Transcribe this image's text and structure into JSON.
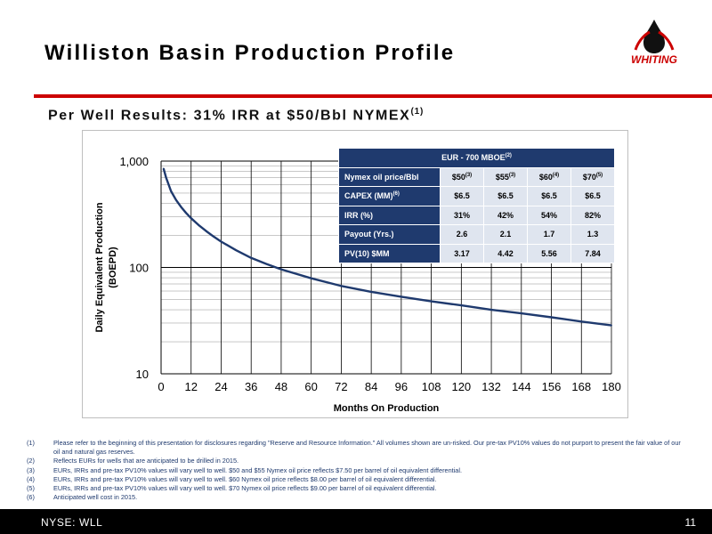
{
  "slide": {
    "title": "Williston Basin Production Profile",
    "subtitle": "Per Well Results: 31% IRR at $50/Bbl NYMEX",
    "subtitle_note": "(1)",
    "logo_text": "WHITING",
    "footer_ticker": "NYSE: WLL",
    "page_number": "11",
    "accent_color": "#cc0000",
    "table_color": "#1f3a6e"
  },
  "chart_data": {
    "type": "line",
    "title": "",
    "xlabel": "Months On Production",
    "ylabel": "Daily Equivalent Production (BOEPD)",
    "ylabel_lines": [
      "Daily Equivalent Production",
      "(BOEPD)"
    ],
    "yscale": "log",
    "ylim": [
      10,
      1000
    ],
    "xlim": [
      0,
      180
    ],
    "x_ticks": [
      "0",
      "12",
      "24",
      "36",
      "48",
      "60",
      "72",
      "84",
      "96",
      "108",
      "120",
      "132",
      "144",
      "156",
      "168",
      "180"
    ],
    "y_ticks": [
      "1,000",
      "100",
      "10"
    ],
    "grid": true,
    "series": [
      {
        "color": "#1f3a6e",
        "x": [
          1,
          2,
          4,
          6,
          8,
          10,
          12,
          15,
          18,
          21,
          24,
          30,
          36,
          42,
          48,
          60,
          72,
          84,
          96,
          108,
          120,
          132,
          144,
          156,
          168,
          180
        ],
        "y": [
          850,
          700,
          520,
          430,
          370,
          325,
          290,
          250,
          220,
          195,
          175,
          145,
          123,
          108,
          96,
          79,
          67,
          59,
          53,
          48,
          44,
          40,
          37,
          34,
          31,
          28.5
        ]
      }
    ]
  },
  "table": {
    "header": "EUR - 700 MBOE",
    "header_note": "(2)",
    "rows": [
      {
        "label": "Nymex oil price/Bbl",
        "label_note": "",
        "values": [
          "$50",
          "$55",
          "$60",
          "$70"
        ],
        "notes": [
          "(3)",
          "(3)",
          "(4)",
          "(5)"
        ]
      },
      {
        "label": "CAPEX (MM)",
        "label_note": "(6)",
        "values": [
          "$6.5",
          "$6.5",
          "$6.5",
          "$6.5"
        ],
        "notes": [
          "",
          "",
          "",
          ""
        ]
      },
      {
        "label": "IRR (%)",
        "label_note": "",
        "values": [
          "31%",
          "42%",
          "54%",
          "82%"
        ],
        "notes": [
          "",
          "",
          "",
          ""
        ]
      },
      {
        "label": "Payout (Yrs.)",
        "label_note": "",
        "values": [
          "2.6",
          "2.1",
          "1.7",
          "1.3"
        ],
        "notes": [
          "",
          "",
          "",
          ""
        ]
      },
      {
        "label": "PV(10) $MM",
        "label_note": "",
        "values": [
          "3.17",
          "4.42",
          "5.56",
          "7.84"
        ],
        "notes": [
          "",
          "",
          "",
          ""
        ]
      }
    ]
  },
  "footnotes": [
    {
      "num": "(1)",
      "text": "Please refer to the beginning of this presentation for disclosures regarding \"Reserve and Resource Information.\"   All volumes shown are un-risked.  Our pre-tax PV10% values do not purport to present the fair value of our oil and natural gas reserves."
    },
    {
      "num": "(2)",
      "text": "Reflects EURs for wells that are anticipated to be drilled in 2015."
    },
    {
      "num": "(3)",
      "text": "EURs, IRRs and pre-tax PV10% values will vary well to well.  $50 and $55 Nymex oil price reflects $7.50 per barrel of oil equivalent differential."
    },
    {
      "num": "(4)",
      "text": "EURs, IRRs and pre-tax PV10% values will vary well to well.  $60 Nymex oil price reflects $8.00 per barrel of oil equivalent differential."
    },
    {
      "num": "(5)",
      "text": "EURs, IRRs and pre-tax PV10% values will vary well to well.  $70 Nymex oil price reflects $9.00 per barrel of oil equivalent differential."
    },
    {
      "num": "(6)",
      "text": "Anticipated well cost in 2015."
    }
  ]
}
